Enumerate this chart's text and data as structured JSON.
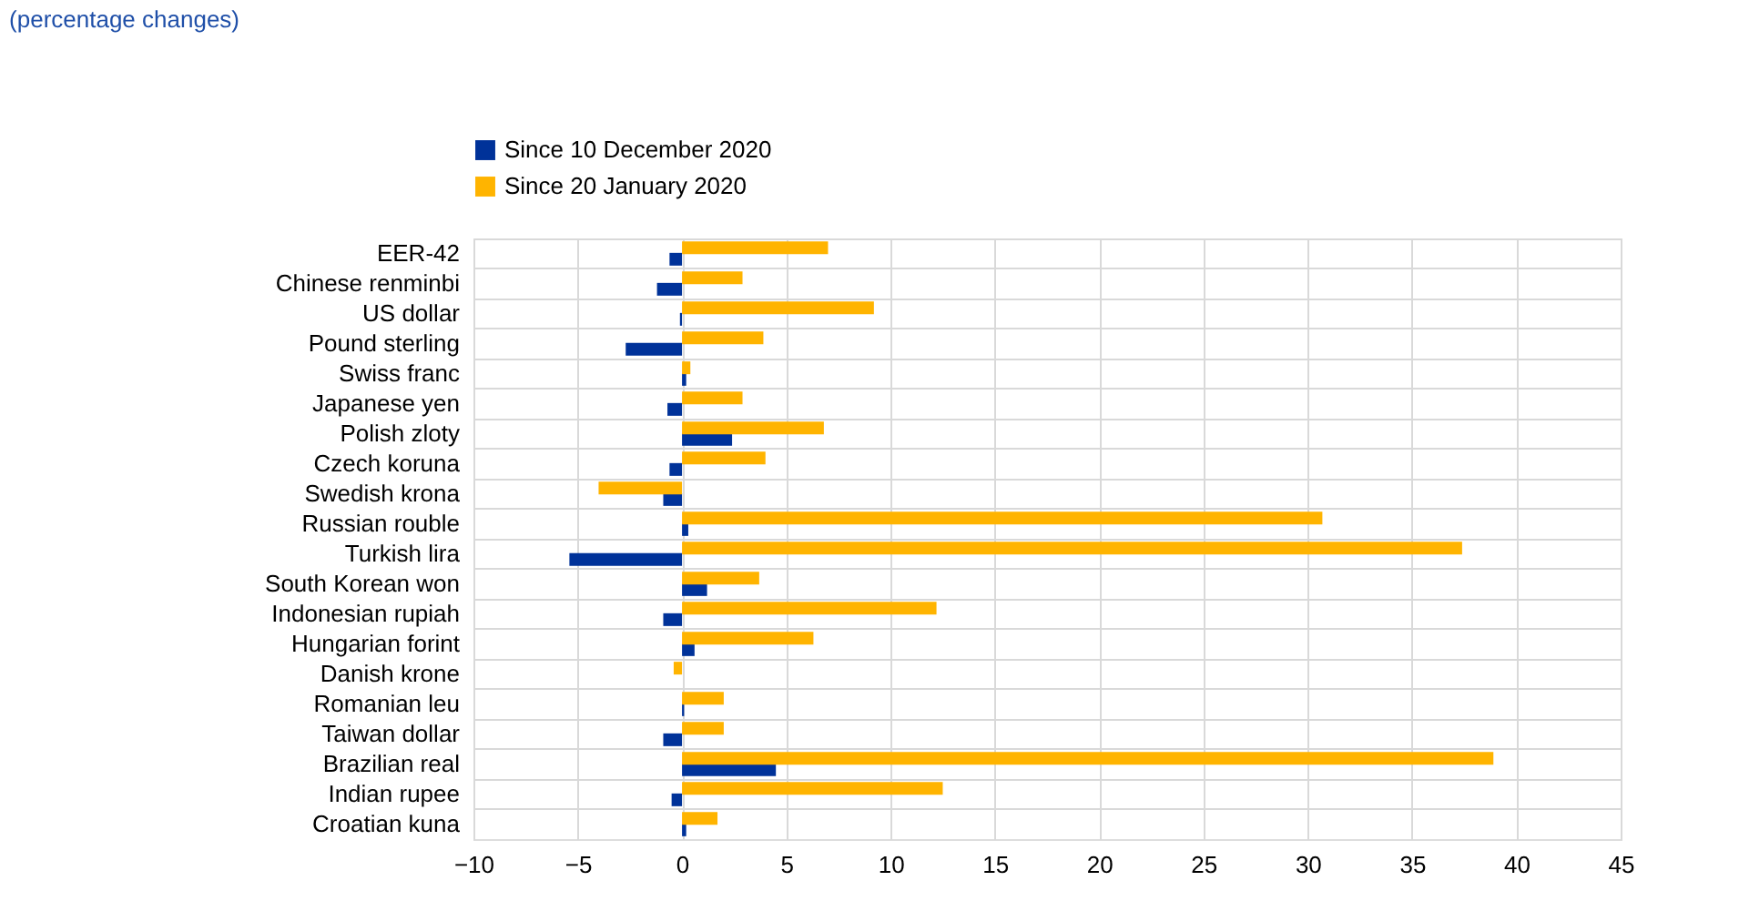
{
  "chart_data": {
    "type": "bar",
    "orientation": "horizontal",
    "title": "(percentage changes)",
    "categories": [
      "EER-42",
      "Chinese renminbi",
      "US dollar",
      "Pound sterling",
      "Swiss franc",
      "Japanese yen",
      "Polish zloty",
      "Czech koruna",
      "Swedish krona",
      "Russian rouble",
      "Turkish lira",
      "South Korean won",
      "Indonesian rupiah",
      "Hungarian forint",
      "Danish krone",
      "Romanian leu",
      "Taiwan dollar",
      "Brazilian real",
      "Indian rupee",
      "Croatian kuna"
    ],
    "series": [
      {
        "name": "Since 10 December 2020",
        "color": "#003299",
        "values": [
          -0.6,
          -1.2,
          -0.1,
          -2.7,
          0.2,
          -0.7,
          2.4,
          -0.6,
          -0.9,
          0.3,
          -5.4,
          1.2,
          -0.9,
          0.6,
          0.0,
          0.1,
          -0.9,
          4.5,
          -0.5,
          0.2
        ]
      },
      {
        "name": "Since 20 January 2020",
        "color": "#ffb400",
        "values": [
          7.0,
          2.9,
          9.2,
          3.9,
          0.4,
          2.9,
          6.8,
          4.0,
          -4.0,
          30.7,
          37.4,
          3.7,
          12.2,
          6.3,
          -0.4,
          2.0,
          2.0,
          38.9,
          12.5,
          1.7
        ]
      }
    ],
    "xlim": [
      -10,
      45
    ],
    "xticks": [
      -10,
      -5,
      0,
      5,
      10,
      15,
      20,
      25,
      30,
      35,
      40,
      45
    ],
    "grid": true,
    "legend": "top left"
  }
}
